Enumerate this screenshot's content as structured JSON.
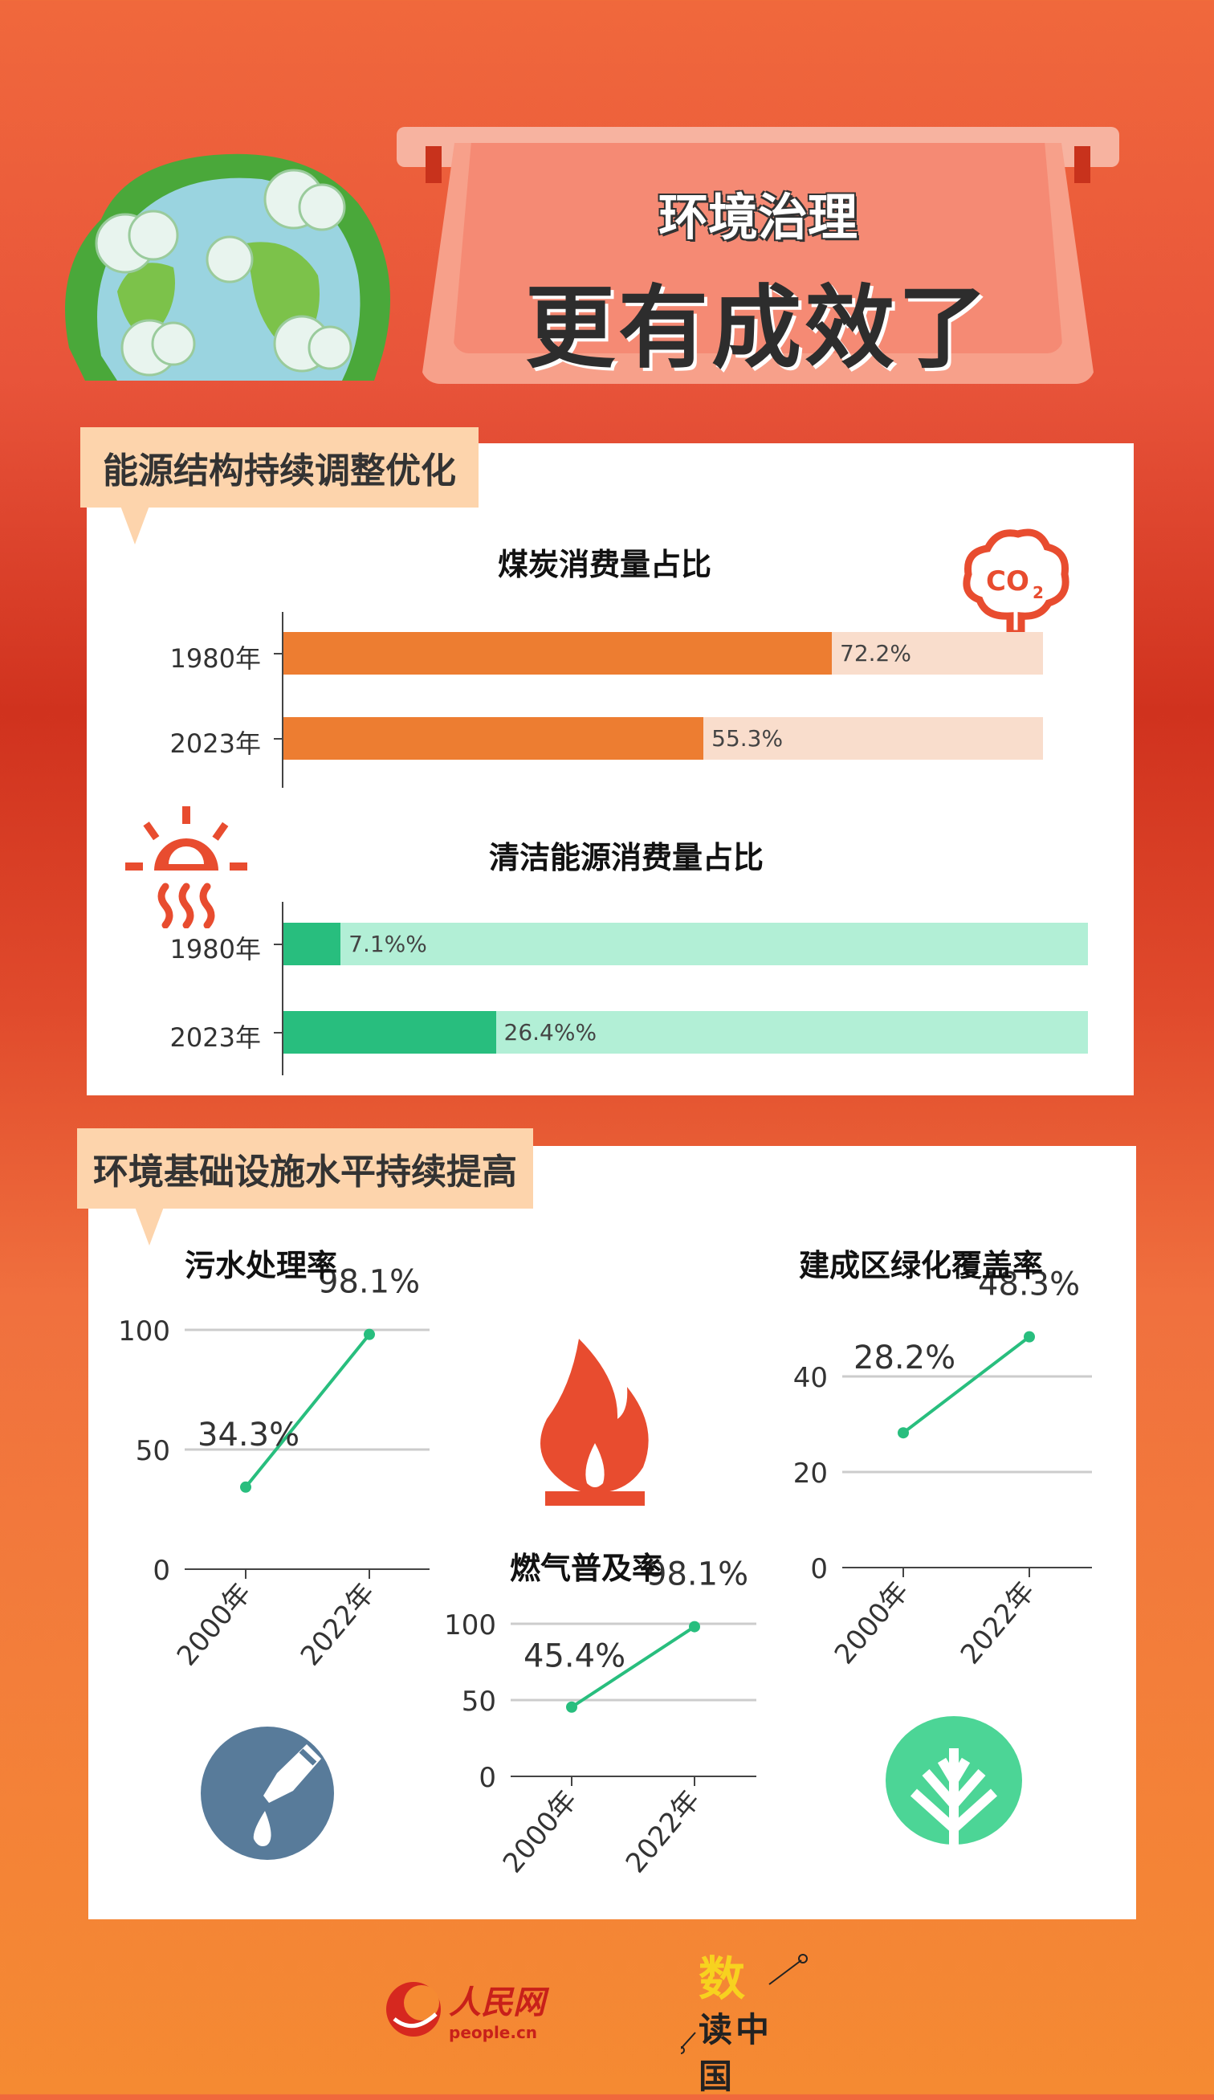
{
  "header": {
    "title_line1": "环境治理",
    "title_line2": "更有成效了"
  },
  "section1": {
    "label": "能源结构持续调整优化"
  },
  "section2": {
    "label": "环境基础设施水平持续提高"
  },
  "icons": {
    "globe": "globe-illustration-icon",
    "co2": "co2-cloud-icon",
    "sun": "sun-heat-icon",
    "flame": "gas-flame-icon",
    "water": "water-drop-pipe-icon",
    "tree": "tree-icon"
  },
  "colors": {
    "coal_fill": "#ED7D31",
    "coal_track": "#F9DDCC",
    "clean_fill": "#28BE7E",
    "clean_track": "#B2EFD6",
    "line": "#28BE7E",
    "background_top": "#F0683C",
    "background_mid": "#D0321E",
    "background_bottom": "#F58A32",
    "label_bg": "#FDD4AC"
  },
  "chart_data": [
    {
      "type": "bar",
      "orientation": "horizontal",
      "title": "煤炭消费量占比",
      "categories": [
        "1980年",
        "2023年"
      ],
      "values": [
        72.2,
        55.3
      ],
      "value_labels": [
        "72.2%",
        "55.3%"
      ],
      "xlim": [
        0,
        100
      ]
    },
    {
      "type": "bar",
      "orientation": "horizontal",
      "title": "清洁能源消费量占比",
      "categories": [
        "1980年",
        "2023年"
      ],
      "values": [
        7.1,
        26.4
      ],
      "value_labels": [
        "7.1%%",
        "26.4%%"
      ],
      "xlim": [
        0,
        100
      ]
    },
    {
      "type": "line",
      "title": "污水处理率",
      "x": [
        "2000年",
        "2022年"
      ],
      "values": [
        34.3,
        98.1
      ],
      "value_labels": [
        "34.3%",
        "98.1%"
      ],
      "yticks": [
        "0",
        "50",
        "100"
      ],
      "ylim": [
        0,
        100
      ],
      "grid": true
    },
    {
      "type": "line",
      "title": "燃气普及率",
      "x": [
        "2000年",
        "2022年"
      ],
      "values": [
        45.4,
        98.1
      ],
      "value_labels": [
        "45.4%",
        "98.1%"
      ],
      "yticks": [
        "0",
        "50",
        "100"
      ],
      "ylim": [
        0,
        100
      ],
      "grid": true
    },
    {
      "type": "line",
      "title": "建成区绿化覆盖率",
      "x": [
        "2000年",
        "2022年"
      ],
      "values": [
        28.2,
        48.3
      ],
      "value_labels": [
        "28.2%",
        "48.3%"
      ],
      "yticks": [
        "0",
        "20",
        "40"
      ],
      "ylim": [
        0,
        50
      ],
      "grid": true
    }
  ],
  "footer": {
    "logo1_text": "人民网",
    "logo1_sub": "people.cn",
    "logo2_text": "数读中国"
  }
}
